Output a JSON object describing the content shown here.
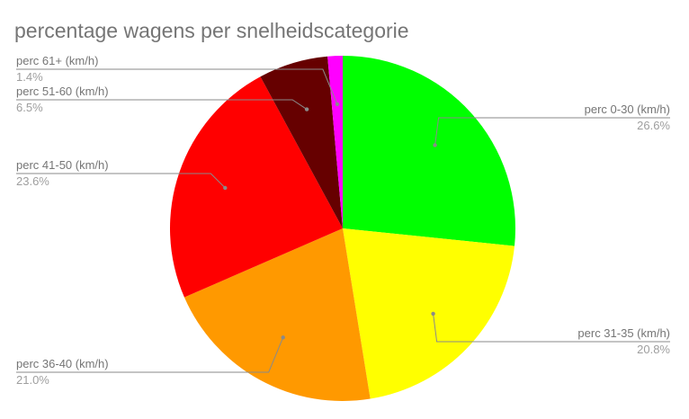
{
  "chart_data": {
    "type": "pie",
    "title": "percentage wagens per snelheidscategorie",
    "slices": [
      {
        "label": "perc 0-30 (km/h)",
        "value": 26.6,
        "value_label": "26.6%",
        "color": "#00ff00"
      },
      {
        "label": "perc 31-35 (km/h)",
        "value": 20.8,
        "value_label": "20.8%",
        "color": "#ffff00"
      },
      {
        "label": "perc 36-40 (km/h)",
        "value": 21.0,
        "value_label": "21.0%",
        "color": "#ff9900"
      },
      {
        "label": "perc 41-50 (km/h)",
        "value": 23.6,
        "value_label": "23.6%",
        "color": "#ff0000"
      },
      {
        "label": "perc 51-60 (km/h)",
        "value": 6.5,
        "value_label": "6.5%",
        "color": "#660000"
      },
      {
        "label": "perc 61+ (km/h)",
        "value": 1.4,
        "value_label": "1.4%",
        "color": "#ff00ff"
      }
    ],
    "start_angle": "12 o'clock",
    "direction": "clockwise",
    "legend": "none"
  }
}
